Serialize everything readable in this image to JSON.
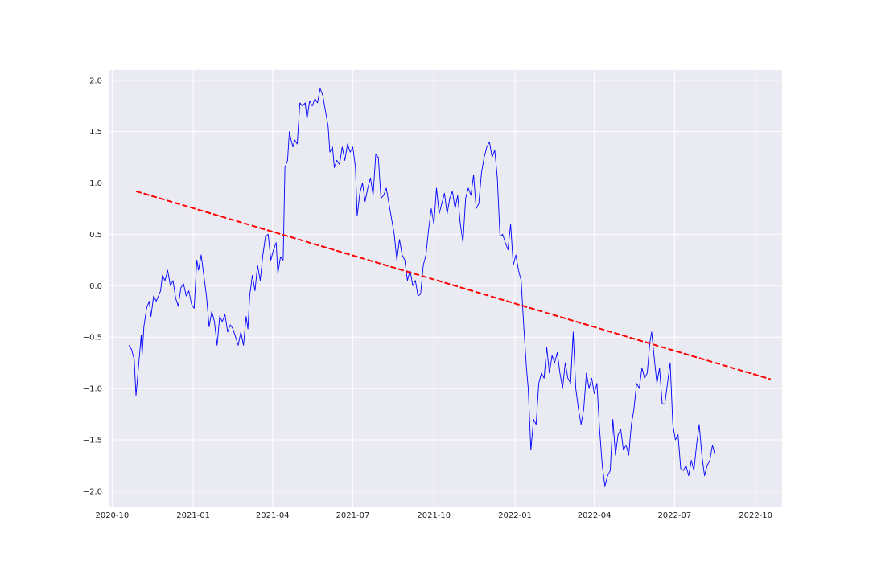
{
  "chart_data": {
    "type": "line",
    "title": "",
    "xlabel": "",
    "ylabel": "",
    "x_axis_type": "date",
    "xlim": [
      "2020-09-27",
      "2022-10-31"
    ],
    "ylim": [
      -2.15,
      2.1
    ],
    "x_ticks": [
      "2020-10-01",
      "2021-01-01",
      "2021-04-01",
      "2021-07-01",
      "2021-10-01",
      "2022-01-01",
      "2022-04-01",
      "2022-07-01",
      "2022-10-01"
    ],
    "x_tick_labels": [
      "2020-10",
      "2021-01",
      "2021-04",
      "2021-07",
      "2021-10",
      "2022-01",
      "2022-04",
      "2022-07",
      "2022-10"
    ],
    "y_ticks": [
      -2.0,
      -1.5,
      -1.0,
      -0.5,
      0.0,
      0.5,
      1.0,
      1.5,
      2.0
    ],
    "y_tick_labels": [
      "−2.0",
      "−1.5",
      "−1.0",
      "−0.5",
      "0.0",
      "0.5",
      "1.0",
      "1.5",
      "2.0"
    ],
    "grid": true,
    "background": "#eaeaf2",
    "series": [
      {
        "color": "#0000ff",
        "style": "solid",
        "points": [
          [
            "2020-10-20",
            -0.58
          ],
          [
            "2020-10-23",
            -0.62
          ],
          [
            "2020-10-26",
            -0.72
          ],
          [
            "2020-10-28",
            -1.07
          ],
          [
            "2020-10-31",
            -0.78
          ],
          [
            "2020-11-03",
            -0.48
          ],
          [
            "2020-11-04",
            -0.68
          ],
          [
            "2020-11-06",
            -0.4
          ],
          [
            "2020-11-09",
            -0.22
          ],
          [
            "2020-11-12",
            -0.15
          ],
          [
            "2020-11-14",
            -0.3
          ],
          [
            "2020-11-17",
            -0.1
          ],
          [
            "2020-11-20",
            -0.15
          ],
          [
            "2020-11-25",
            -0.05
          ],
          [
            "2020-11-27",
            0.1
          ],
          [
            "2020-11-30",
            0.05
          ],
          [
            "2020-12-03",
            0.15
          ],
          [
            "2020-12-06",
            0.0
          ],
          [
            "2020-12-09",
            0.05
          ],
          [
            "2020-12-12",
            -0.12
          ],
          [
            "2020-12-15",
            -0.2
          ],
          [
            "2020-12-18",
            -0.02
          ],
          [
            "2020-12-21",
            0.02
          ],
          [
            "2020-12-24",
            -0.1
          ],
          [
            "2020-12-27",
            -0.05
          ],
          [
            "2020-12-30",
            -0.18
          ],
          [
            "2021-01-02",
            -0.22
          ],
          [
            "2021-01-05",
            0.25
          ],
          [
            "2021-01-07",
            0.15
          ],
          [
            "2021-01-10",
            0.3
          ],
          [
            "2021-01-13",
            0.1
          ],
          [
            "2021-01-16",
            -0.1
          ],
          [
            "2021-01-19",
            -0.4
          ],
          [
            "2021-01-22",
            -0.25
          ],
          [
            "2021-01-25",
            -0.35
          ],
          [
            "2021-01-28",
            -0.58
          ],
          [
            "2021-01-31",
            -0.3
          ],
          [
            "2021-02-03",
            -0.35
          ],
          [
            "2021-02-06",
            -0.28
          ],
          [
            "2021-02-09",
            -0.45
          ],
          [
            "2021-02-12",
            -0.38
          ],
          [
            "2021-02-15",
            -0.42
          ],
          [
            "2021-02-18",
            -0.5
          ],
          [
            "2021-02-21",
            -0.58
          ],
          [
            "2021-02-24",
            -0.45
          ],
          [
            "2021-02-27",
            -0.58
          ],
          [
            "2021-03-02",
            -0.3
          ],
          [
            "2021-03-04",
            -0.42
          ],
          [
            "2021-03-06",
            -0.1
          ],
          [
            "2021-03-09",
            0.1
          ],
          [
            "2021-03-12",
            -0.05
          ],
          [
            "2021-03-15",
            0.2
          ],
          [
            "2021-03-18",
            0.05
          ],
          [
            "2021-03-21",
            0.3
          ],
          [
            "2021-03-24",
            0.48
          ],
          [
            "2021-03-27",
            0.5
          ],
          [
            "2021-03-30",
            0.25
          ],
          [
            "2021-04-02",
            0.35
          ],
          [
            "2021-04-05",
            0.42
          ],
          [
            "2021-04-07",
            0.12
          ],
          [
            "2021-04-10",
            0.28
          ],
          [
            "2021-04-13",
            0.25
          ],
          [
            "2021-04-15",
            1.15
          ],
          [
            "2021-04-18",
            1.22
          ],
          [
            "2021-04-20",
            1.5
          ],
          [
            "2021-04-22",
            1.42
          ],
          [
            "2021-04-24",
            1.35
          ],
          [
            "2021-04-26",
            1.42
          ],
          [
            "2021-04-29",
            1.38
          ],
          [
            "2021-05-02",
            1.78
          ],
          [
            "2021-05-05",
            1.75
          ],
          [
            "2021-05-08",
            1.78
          ],
          [
            "2021-05-10",
            1.62
          ],
          [
            "2021-05-13",
            1.8
          ],
          [
            "2021-05-16",
            1.75
          ],
          [
            "2021-05-19",
            1.82
          ],
          [
            "2021-05-22",
            1.78
          ],
          [
            "2021-05-25",
            1.92
          ],
          [
            "2021-05-28",
            1.85
          ],
          [
            "2021-05-31",
            1.7
          ],
          [
            "2021-06-03",
            1.55
          ],
          [
            "2021-06-05",
            1.3
          ],
          [
            "2021-06-08",
            1.35
          ],
          [
            "2021-06-10",
            1.15
          ],
          [
            "2021-06-13",
            1.22
          ],
          [
            "2021-06-16",
            1.18
          ],
          [
            "2021-06-19",
            1.35
          ],
          [
            "2021-06-22",
            1.22
          ],
          [
            "2021-06-25",
            1.38
          ],
          [
            "2021-06-28",
            1.3
          ],
          [
            "2021-07-01",
            1.35
          ],
          [
            "2021-07-04",
            1.15
          ],
          [
            "2021-07-06",
            0.68
          ],
          [
            "2021-07-09",
            0.9
          ],
          [
            "2021-07-12",
            1.0
          ],
          [
            "2021-07-15",
            0.82
          ],
          [
            "2021-07-18",
            0.95
          ],
          [
            "2021-07-21",
            1.05
          ],
          [
            "2021-07-24",
            0.88
          ],
          [
            "2021-07-27",
            1.28
          ],
          [
            "2021-07-30",
            1.25
          ],
          [
            "2021-08-02",
            0.85
          ],
          [
            "2021-08-05",
            0.88
          ],
          [
            "2021-08-08",
            0.95
          ],
          [
            "2021-08-11",
            0.8
          ],
          [
            "2021-08-14",
            0.65
          ],
          [
            "2021-08-17",
            0.5
          ],
          [
            "2021-08-20",
            0.25
          ],
          [
            "2021-08-23",
            0.45
          ],
          [
            "2021-08-26",
            0.3
          ],
          [
            "2021-08-29",
            0.25
          ],
          [
            "2021-09-01",
            0.05
          ],
          [
            "2021-09-04",
            0.15
          ],
          [
            "2021-09-07",
            0.0
          ],
          [
            "2021-09-10",
            0.05
          ],
          [
            "2021-09-13",
            -0.1
          ],
          [
            "2021-09-16",
            -0.08
          ],
          [
            "2021-09-19",
            0.2
          ],
          [
            "2021-09-22",
            0.3
          ],
          [
            "2021-09-25",
            0.55
          ],
          [
            "2021-09-28",
            0.75
          ],
          [
            "2021-10-01",
            0.6
          ],
          [
            "2021-10-04",
            0.95
          ],
          [
            "2021-10-07",
            0.7
          ],
          [
            "2021-10-10",
            0.8
          ],
          [
            "2021-10-13",
            0.9
          ],
          [
            "2021-10-16",
            0.7
          ],
          [
            "2021-10-19",
            0.85
          ],
          [
            "2021-10-22",
            0.92
          ],
          [
            "2021-10-25",
            0.75
          ],
          [
            "2021-10-28",
            0.88
          ],
          [
            "2021-10-31",
            0.6
          ],
          [
            "2021-11-03",
            0.42
          ],
          [
            "2021-11-06",
            0.85
          ],
          [
            "2021-11-09",
            0.95
          ],
          [
            "2021-11-12",
            0.88
          ],
          [
            "2021-11-15",
            1.08
          ],
          [
            "2021-11-18",
            0.75
          ],
          [
            "2021-11-21",
            0.8
          ],
          [
            "2021-11-24",
            1.1
          ],
          [
            "2021-11-27",
            1.25
          ],
          [
            "2021-11-30",
            1.35
          ],
          [
            "2021-12-03",
            1.4
          ],
          [
            "2021-12-06",
            1.25
          ],
          [
            "2021-12-09",
            1.32
          ],
          [
            "2021-12-12",
            1.05
          ],
          [
            "2021-12-15",
            0.48
          ],
          [
            "2021-12-18",
            0.5
          ],
          [
            "2021-12-21",
            0.42
          ],
          [
            "2021-12-24",
            0.35
          ],
          [
            "2021-12-27",
            0.6
          ],
          [
            "2021-12-30",
            0.2
          ],
          [
            "2022-01-02",
            0.3
          ],
          [
            "2022-01-05",
            0.15
          ],
          [
            "2022-01-08",
            0.05
          ],
          [
            "2022-01-11",
            -0.4
          ],
          [
            "2022-01-14",
            -0.8
          ],
          [
            "2022-01-16",
            -1.0
          ],
          [
            "2022-01-19",
            -1.6
          ],
          [
            "2022-01-22",
            -1.3
          ],
          [
            "2022-01-25",
            -1.35
          ],
          [
            "2022-01-28",
            -0.95
          ],
          [
            "2022-01-31",
            -0.85
          ],
          [
            "2022-02-03",
            -0.9
          ],
          [
            "2022-02-06",
            -0.6
          ],
          [
            "2022-02-09",
            -0.85
          ],
          [
            "2022-02-12",
            -0.68
          ],
          [
            "2022-02-15",
            -0.75
          ],
          [
            "2022-02-18",
            -0.65
          ],
          [
            "2022-02-21",
            -0.85
          ],
          [
            "2022-02-24",
            -1.0
          ],
          [
            "2022-02-27",
            -0.75
          ],
          [
            "2022-03-02",
            -0.9
          ],
          [
            "2022-03-05",
            -0.95
          ],
          [
            "2022-03-08",
            -0.45
          ],
          [
            "2022-03-11",
            -1.0
          ],
          [
            "2022-03-14",
            -1.2
          ],
          [
            "2022-03-17",
            -1.35
          ],
          [
            "2022-03-20",
            -1.2
          ],
          [
            "2022-03-23",
            -0.85
          ],
          [
            "2022-03-26",
            -1.0
          ],
          [
            "2022-03-29",
            -0.9
          ],
          [
            "2022-04-01",
            -1.05
          ],
          [
            "2022-04-04",
            -0.95
          ],
          [
            "2022-04-07",
            -1.4
          ],
          [
            "2022-04-10",
            -1.75
          ],
          [
            "2022-04-13",
            -1.95
          ],
          [
            "2022-04-16",
            -1.85
          ],
          [
            "2022-04-19",
            -1.8
          ],
          [
            "2022-04-22",
            -1.3
          ],
          [
            "2022-04-25",
            -1.65
          ],
          [
            "2022-04-28",
            -1.45
          ],
          [
            "2022-05-01",
            -1.4
          ],
          [
            "2022-05-04",
            -1.6
          ],
          [
            "2022-05-07",
            -1.55
          ],
          [
            "2022-05-10",
            -1.65
          ],
          [
            "2022-05-13",
            -1.35
          ],
          [
            "2022-05-16",
            -1.2
          ],
          [
            "2022-05-19",
            -0.95
          ],
          [
            "2022-05-22",
            -1.0
          ],
          [
            "2022-05-25",
            -0.8
          ],
          [
            "2022-05-28",
            -0.9
          ],
          [
            "2022-05-31",
            -0.85
          ],
          [
            "2022-06-03",
            -0.55
          ],
          [
            "2022-06-05",
            -0.45
          ],
          [
            "2022-06-08",
            -0.7
          ],
          [
            "2022-06-11",
            -0.95
          ],
          [
            "2022-06-14",
            -0.8
          ],
          [
            "2022-06-17",
            -1.15
          ],
          [
            "2022-06-20",
            -1.15
          ],
          [
            "2022-06-23",
            -0.95
          ],
          [
            "2022-06-26",
            -0.75
          ],
          [
            "2022-06-29",
            -1.35
          ],
          [
            "2022-07-02",
            -1.5
          ],
          [
            "2022-07-05",
            -1.45
          ],
          [
            "2022-07-08",
            -1.78
          ],
          [
            "2022-07-11",
            -1.8
          ],
          [
            "2022-07-14",
            -1.75
          ],
          [
            "2022-07-17",
            -1.85
          ],
          [
            "2022-07-20",
            -1.7
          ],
          [
            "2022-07-23",
            -1.8
          ],
          [
            "2022-07-26",
            -1.55
          ],
          [
            "2022-07-29",
            -1.35
          ],
          [
            "2022-08-01",
            -1.65
          ],
          [
            "2022-08-04",
            -1.85
          ],
          [
            "2022-08-07",
            -1.75
          ],
          [
            "2022-08-10",
            -1.7
          ],
          [
            "2022-08-13",
            -1.55
          ],
          [
            "2022-08-16",
            -1.65
          ]
        ]
      },
      {
        "color": "#ff0000",
        "style": "dashed",
        "points": [
          [
            "2020-10-28",
            0.92
          ],
          [
            "2022-10-18",
            -0.91
          ]
        ]
      }
    ]
  }
}
